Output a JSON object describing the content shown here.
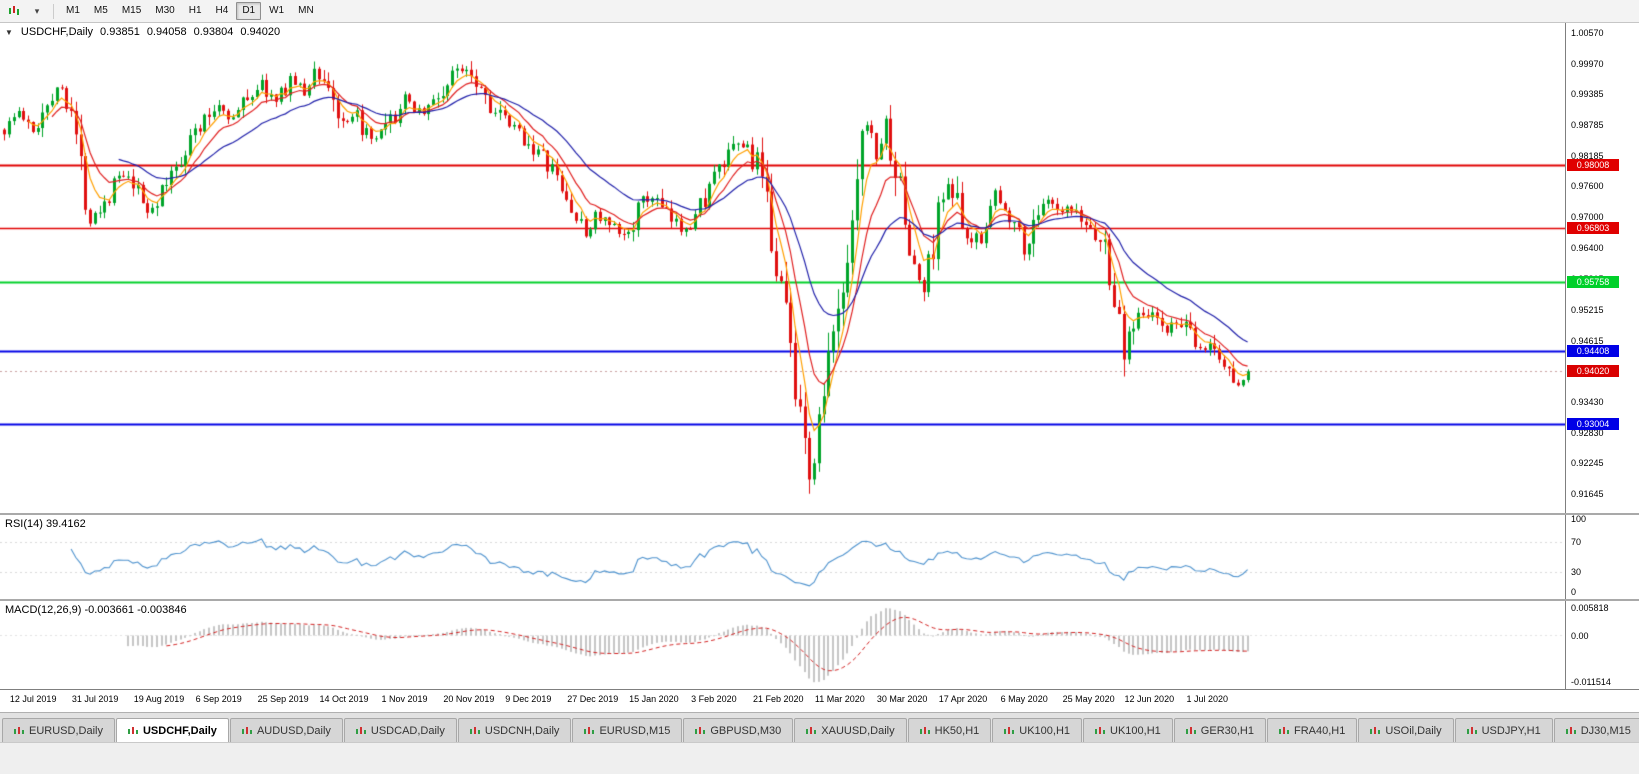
{
  "toolbar": {
    "dropdown_glyph": "▾",
    "timeframes": [
      {
        "label": "M1",
        "active": false
      },
      {
        "label": "M5",
        "active": false
      },
      {
        "label": "M15",
        "active": false
      },
      {
        "label": "M30",
        "active": false
      },
      {
        "label": "H1",
        "active": false
      },
      {
        "label": "H4",
        "active": false
      },
      {
        "label": "D1",
        "active": true
      },
      {
        "label": "W1",
        "active": false
      },
      {
        "label": "MN",
        "active": false
      }
    ]
  },
  "chart_title": {
    "expander": "▼",
    "symbol": "USDCHF,Daily",
    "open": "0.93851",
    "high": "0.94058",
    "low": "0.93804",
    "close": "0.94020"
  },
  "main_axis_labels": [
    "1.00570",
    "0.99970",
    "0.99385",
    "0.98785",
    "0.98185",
    "0.97600",
    "0.97000",
    "0.96400",
    "0.95815",
    "0.95215",
    "0.94615",
    "0.94030",
    "0.93430",
    "0.92830",
    "0.92245",
    "0.91645"
  ],
  "levels": [
    {
      "label": "0.98008",
      "price": 0.98008,
      "color": "#e00000",
      "width": 2
    },
    {
      "label": "0.96803",
      "price": 0.96803,
      "color": "#e00000",
      "width": 1.4
    },
    {
      "label": "0.95758",
      "price": 0.95758,
      "color": "#00d02a",
      "width": 2
    },
    {
      "label": "0.94408",
      "price": 0.94408,
      "color": "#0000e6",
      "width": 2
    },
    {
      "label": "0.93004",
      "price": 0.93004,
      "color": "#0000e6",
      "width": 2
    }
  ],
  "current_price": {
    "label": "0.94020",
    "price": 0.9402,
    "color": "#d90000"
  },
  "rsi": {
    "label": "RSI(14) 39.4162",
    "line_color": "#4f93ce",
    "axis": [
      "100",
      "70",
      "30",
      "0"
    ]
  },
  "macd": {
    "label": "MACD(12,26,9) -0.003661 -0.003846",
    "axis": [
      {
        "t": "0.005818",
        "v": 0.005818
      },
      {
        "t": "0.00",
        "v": 0
      },
      {
        "t": "-0.011514",
        "v": -0.011514
      }
    ]
  },
  "dates": [
    "12 Jul 2019",
    "31 Jul 2019",
    "19 Aug 2019",
    "6 Sep 2019",
    "25 Sep 2019",
    "14 Oct 2019",
    "1 Nov 2019",
    "20 Nov 2019",
    "9 Dec 2019",
    "27 Dec 2019",
    "15 Jan 2020",
    "3 Feb 2020",
    "21 Feb 2020",
    "11 Mar 2020",
    "30 Mar 2020",
    "17 Apr 2020",
    "6 May 2020",
    "25 May 2020",
    "12 Jun 2020",
    "1 Jul 2020"
  ],
  "tabs": [
    {
      "label": "EURUSD,Daily",
      "active": false
    },
    {
      "label": "USDCHF,Daily",
      "active": true
    },
    {
      "label": "AUDUSD,Daily",
      "active": false
    },
    {
      "label": "USDCAD,Daily",
      "active": false
    },
    {
      "label": "USDCNH,Daily",
      "active": false
    },
    {
      "label": "EURUSD,M15",
      "active": false
    },
    {
      "label": "GBPUSD,M30",
      "active": false
    },
    {
      "label": "XAUUSD,Daily",
      "active": false
    },
    {
      "label": "HK50,H1",
      "active": false
    },
    {
      "label": "UK100,H1",
      "active": false
    },
    {
      "label": "UK100,H1",
      "active": false
    },
    {
      "label": "GER30,H1",
      "active": false
    },
    {
      "label": "FRA40,H1",
      "active": false
    },
    {
      "label": "USOil,Daily",
      "active": false
    },
    {
      "label": "USDJPY,H1",
      "active": false
    },
    {
      "label": "DJ30,M15",
      "active": false
    }
  ],
  "chart_data": {
    "type": "candlestick",
    "symbol": "USDCHF",
    "timeframe": "Daily",
    "candle_count": 262,
    "seed": 1337,
    "date_first_index": 2,
    "date_step": 13,
    "up_color": "#00a42a",
    "down_color": "#e01010",
    "price_range": [
      0.91645,
      1.0057
    ],
    "ma": [
      {
        "period": 5,
        "color": "#ffa000"
      },
      {
        "period": 10,
        "color": "#e02020"
      },
      {
        "period": 24,
        "color": "#2020aa"
      }
    ],
    "keyframes": [
      [
        0,
        0.987
      ],
      [
        3,
        0.9905
      ],
      [
        6,
        0.9862
      ],
      [
        9,
        0.993
      ],
      [
        12,
        0.9952
      ],
      [
        14,
        0.992
      ],
      [
        16,
        0.979
      ],
      [
        18,
        0.9705
      ],
      [
        21,
        0.973
      ],
      [
        24,
        0.978
      ],
      [
        27,
        0.976
      ],
      [
        30,
        0.9712
      ],
      [
        33,
        0.9745
      ],
      [
        36,
        0.98
      ],
      [
        39,
        0.9855
      ],
      [
        42,
        0.9885
      ],
      [
        45,
        0.992
      ],
      [
        48,
        0.989
      ],
      [
        51,
        0.9935
      ],
      [
        54,
        0.9958
      ],
      [
        57,
        0.992
      ],
      [
        60,
        0.997
      ],
      [
        63,
        0.994
      ],
      [
        65,
        0.9983
      ],
      [
        68,
        0.9955
      ],
      [
        71,
        0.987
      ],
      [
        74,
        0.9895
      ],
      [
        77,
        0.984
      ],
      [
        80,
        0.9868
      ],
      [
        84,
        0.9925
      ],
      [
        88,
        0.9905
      ],
      [
        92,
        0.9942
      ],
      [
        95,
        0.9985
      ],
      [
        97,
        0.9995
      ],
      [
        100,
        0.9955
      ],
      [
        103,
        0.9905
      ],
      [
        106,
        0.9875
      ],
      [
        109,
        0.9855
      ],
      [
        112,
        0.9825
      ],
      [
        115,
        0.979
      ],
      [
        118,
        0.9732
      ],
      [
        120,
        0.97
      ],
      [
        122,
        0.9665
      ],
      [
        124,
        0.9705
      ],
      [
        127,
        0.968
      ],
      [
        130,
        0.966
      ],
      [
        133,
        0.9715
      ],
      [
        136,
        0.9742
      ],
      [
        139,
        0.97
      ],
      [
        142,
        0.968
      ],
      [
        145,
        0.9702
      ],
      [
        148,
        0.9762
      ],
      [
        151,
        0.9802
      ],
      [
        154,
        0.984
      ],
      [
        156,
        0.9834
      ],
      [
        158,
        0.9798
      ],
      [
        160,
        0.971
      ],
      [
        162,
        0.9618
      ],
      [
        164,
        0.952
      ],
      [
        166,
        0.938
      ],
      [
        168,
        0.9298
      ],
      [
        169,
        0.9178
      ],
      [
        171,
        0.93
      ],
      [
        173,
        0.942
      ],
      [
        176,
        0.956
      ],
      [
        179,
        0.98
      ],
      [
        181,
        0.989
      ],
      [
        183,
        0.9818
      ],
      [
        185,
        0.9878
      ],
      [
        187,
        0.9798
      ],
      [
        189,
        0.969
      ],
      [
        191,
        0.9598
      ],
      [
        193,
        0.9558
      ],
      [
        196,
        0.9702
      ],
      [
        198,
        0.9775
      ],
      [
        200,
        0.9718
      ],
      [
        202,
        0.964
      ],
      [
        205,
        0.9672
      ],
      [
        208,
        0.9748
      ],
      [
        210,
        0.9706
      ],
      [
        212,
        0.9712
      ],
      [
        214,
        0.9625
      ],
      [
        216,
        0.97
      ],
      [
        219,
        0.9728
      ],
      [
        222,
        0.97
      ],
      [
        223,
        0.9716
      ],
      [
        226,
        0.9692
      ],
      [
        228,
        0.968
      ],
      [
        231,
        0.964
      ],
      [
        233,
        0.955
      ],
      [
        235,
        0.943
      ],
      [
        236,
        0.9478
      ],
      [
        238,
        0.9525
      ],
      [
        241,
        0.9508
      ],
      [
        244,
        0.9482
      ],
      [
        247,
        0.9498
      ],
      [
        249,
        0.9465
      ],
      [
        251,
        0.944
      ],
      [
        253,
        0.9455
      ],
      [
        255,
        0.9428
      ],
      [
        257,
        0.9398
      ],
      [
        259,
        0.9385
      ],
      [
        261,
        0.9402
      ]
    ],
    "overrides": {
      "169": {
        "l": 0.9165
      },
      "235": {
        "l": 0.9392
      },
      "261": {
        "o": 0.93851,
        "h": 0.94058,
        "l": 0.93804,
        "c": 0.9402
      }
    }
  }
}
